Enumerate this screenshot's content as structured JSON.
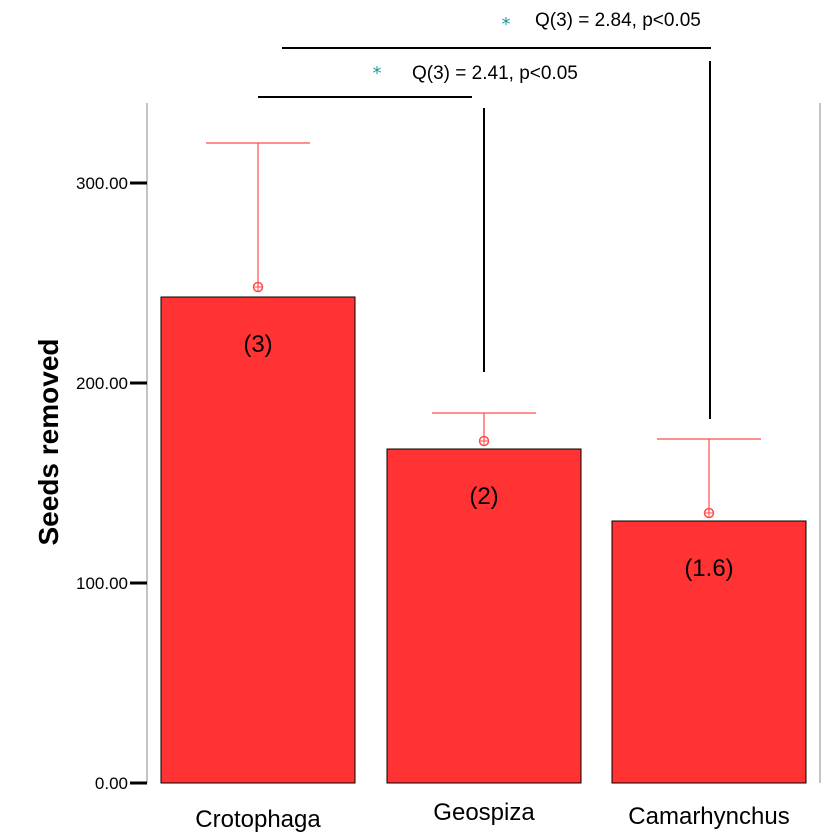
{
  "chart_data": {
    "type": "bar",
    "title": "",
    "xlabel": "",
    "ylabel": "Seeds  removed",
    "ylim": [
      0,
      300
    ],
    "yticks": [
      0,
      100,
      200,
      300
    ],
    "ytick_labels": [
      "0.00",
      "100.00",
      "200.00",
      "300.00"
    ],
    "categories": [
      "Crotophaga",
      "Geospiza",
      "Camarhynchus"
    ],
    "values": [
      243,
      167,
      131
    ],
    "error_bar_upper": [
      320,
      185,
      172
    ],
    "markers": [
      248,
      171,
      135
    ],
    "bar_labels": [
      "(3)",
      "(2)",
      "(1.6)"
    ],
    "annotations": [
      {
        "from": "Crotophaga",
        "to": "Geospiza",
        "star": "*",
        "text": "Q(3) = 2.41, p<0.05"
      },
      {
        "from": "Crotophaga",
        "to": "Camarhynchus",
        "star": "*",
        "text": "Q(3) = 2.84, p<0.05"
      }
    ],
    "colors": {
      "bar": "#ff3333",
      "error": "#ff4d4d",
      "star": "#1a9a9a",
      "axis": "#000000"
    },
    "grid": false,
    "legend": "none"
  }
}
